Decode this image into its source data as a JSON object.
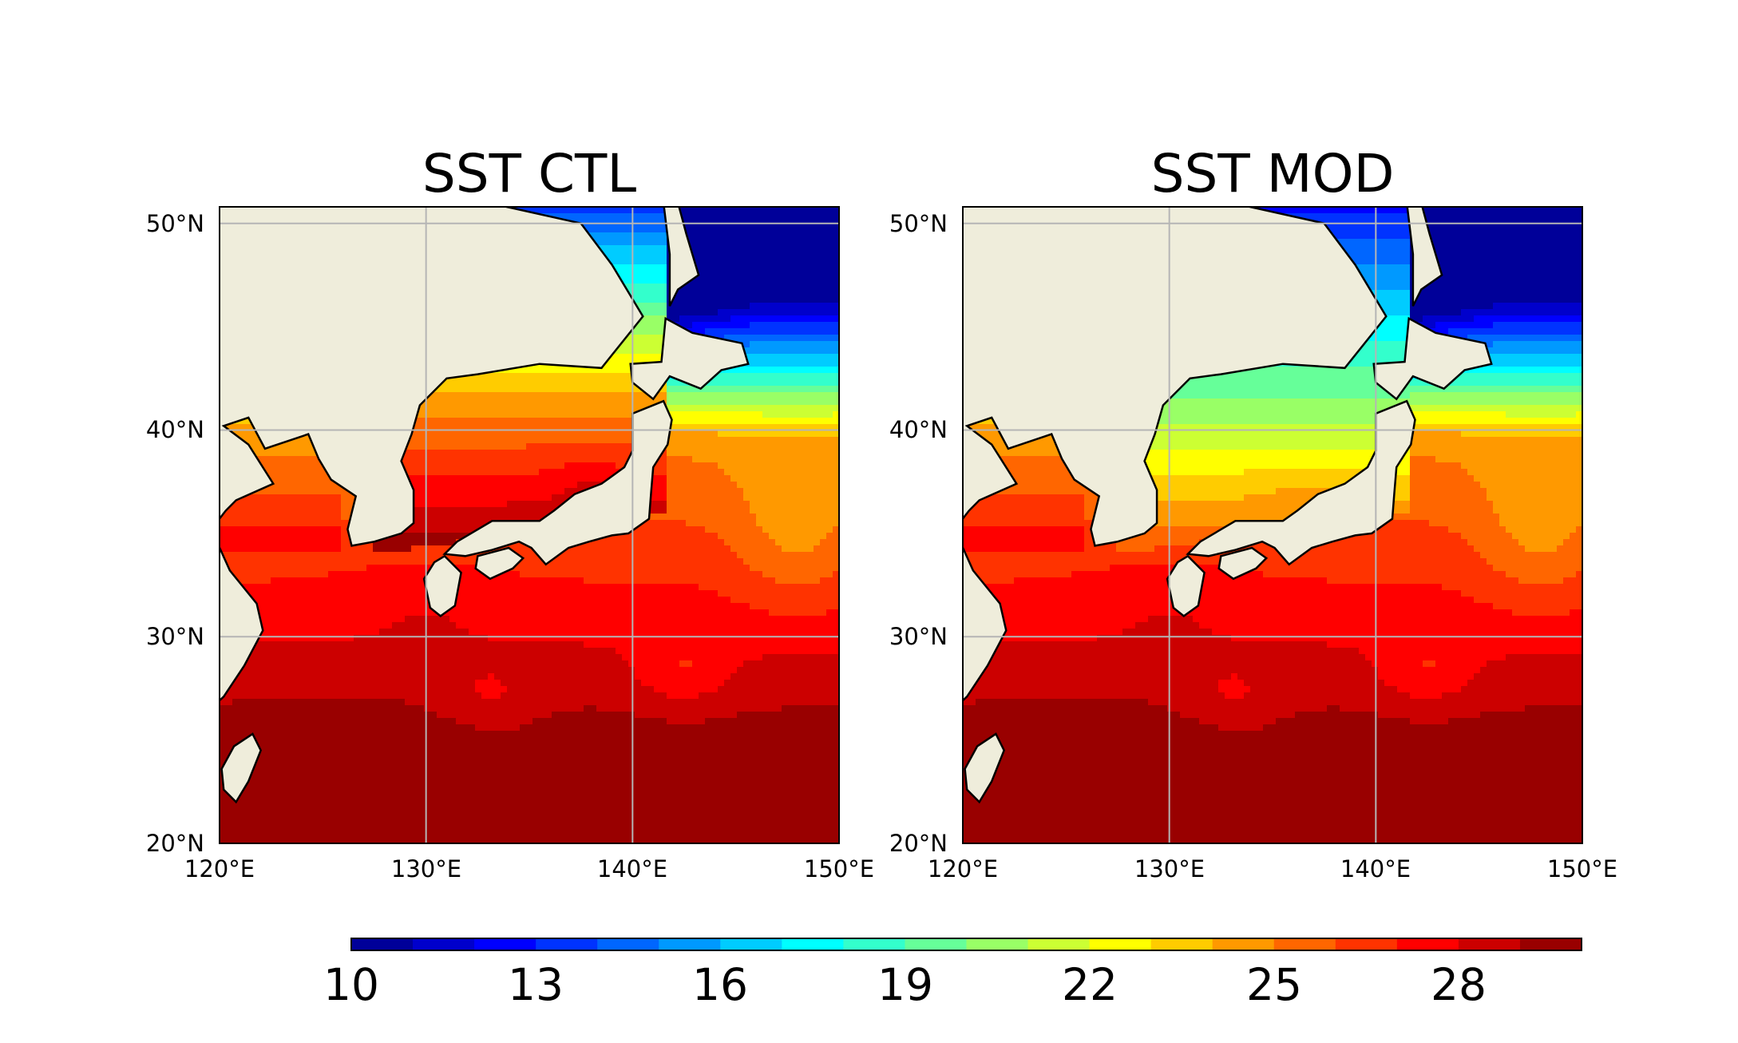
{
  "figure": {
    "panels": [
      {
        "title": "SST CTL",
        "variant": "ctl",
        "lat_labels": [
          "50°N",
          "40°N",
          "30°N",
          "20°N"
        ],
        "lon_labels": [
          "120°E",
          "130°E",
          "140°E",
          "150°E"
        ]
      },
      {
        "title": "SST MOD",
        "variant": "mod",
        "lat_labels": [
          "50°N",
          "40°N",
          "30°N",
          "20°N"
        ],
        "lon_labels": [
          "120°E",
          "130°E",
          "140°E",
          "150°E"
        ]
      }
    ],
    "colorbar": {
      "ticks": [
        "10",
        "13",
        "16",
        "19",
        "22",
        "25",
        "28"
      ],
      "range": [
        10,
        30
      ],
      "levels": 20,
      "colormap": "jet"
    },
    "land_color": "#efeddb",
    "map_extent": {
      "lon": [
        120,
        150
      ],
      "lat": [
        20,
        50.8
      ]
    }
  }
}
